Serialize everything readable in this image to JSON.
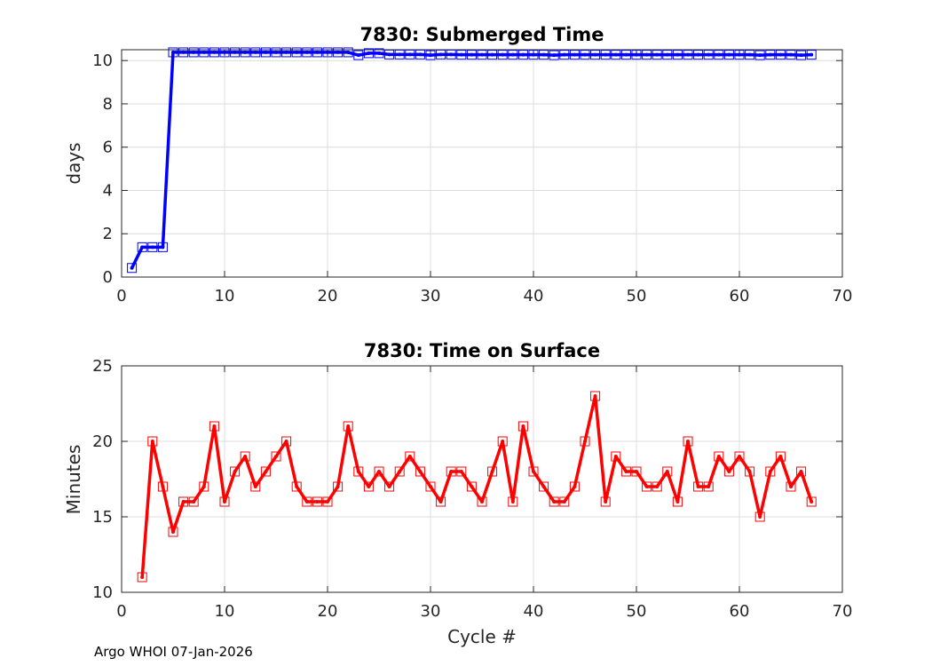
{
  "footer": "Argo WHOI 07-Jan-2026",
  "chart_data": [
    {
      "type": "line",
      "title": "7830: Submerged Time",
      "xlabel": "",
      "ylabel": "days",
      "xlim": [
        0,
        70
      ],
      "ylim": [
        0,
        10.5
      ],
      "xticks": [
        0,
        10,
        20,
        30,
        40,
        50,
        60,
        70
      ],
      "yticks": [
        0,
        2,
        4,
        6,
        8,
        10
      ],
      "grid": true,
      "color": "#0000ff",
      "marker": "square",
      "x": [
        1,
        2,
        3,
        4,
        5,
        6,
        7,
        8,
        9,
        10,
        11,
        12,
        13,
        14,
        15,
        16,
        17,
        18,
        19,
        20,
        21,
        22,
        23,
        24,
        25,
        26,
        27,
        28,
        29,
        30,
        31,
        32,
        33,
        34,
        35,
        36,
        37,
        38,
        39,
        40,
        41,
        42,
        43,
        44,
        45,
        46,
        47,
        48,
        49,
        50,
        51,
        52,
        53,
        54,
        55,
        56,
        57,
        58,
        59,
        60,
        61,
        62,
        63,
        64,
        65,
        66,
        67
      ],
      "values": [
        0.42,
        1.38,
        1.38,
        1.38,
        10.38,
        10.38,
        10.38,
        10.38,
        10.38,
        10.38,
        10.38,
        10.38,
        10.38,
        10.38,
        10.38,
        10.38,
        10.38,
        10.38,
        10.38,
        10.38,
        10.38,
        10.38,
        10.25,
        10.34,
        10.34,
        10.28,
        10.28,
        10.28,
        10.28,
        10.25,
        10.28,
        10.28,
        10.27,
        10.27,
        10.27,
        10.27,
        10.27,
        10.27,
        10.27,
        10.27,
        10.27,
        10.25,
        10.27,
        10.27,
        10.27,
        10.27,
        10.27,
        10.27,
        10.27,
        10.27,
        10.27,
        10.27,
        10.27,
        10.27,
        10.27,
        10.27,
        10.27,
        10.27,
        10.27,
        10.27,
        10.27,
        10.25,
        10.27,
        10.27,
        10.27,
        10.25,
        10.27
      ]
    },
    {
      "type": "line",
      "title": "7830: Time on Surface",
      "xlabel": "Cycle #",
      "ylabel": "Minutes",
      "xlim": [
        0,
        70
      ],
      "ylim": [
        10,
        25
      ],
      "xticks": [
        0,
        10,
        20,
        30,
        40,
        50,
        60,
        70
      ],
      "yticks": [
        10,
        15,
        20,
        25
      ],
      "grid": true,
      "color": "#ff0000",
      "marker": "square",
      "x": [
        2,
        3,
        4,
        5,
        6,
        7,
        8,
        9,
        10,
        11,
        12,
        13,
        14,
        15,
        16,
        17,
        18,
        19,
        20,
        21,
        22,
        23,
        24,
        25,
        26,
        27,
        28,
        29,
        30,
        31,
        32,
        33,
        34,
        35,
        36,
        37,
        38,
        39,
        40,
        41,
        42,
        43,
        44,
        45,
        46,
        47,
        48,
        49,
        50,
        51,
        52,
        53,
        54,
        55,
        56,
        57,
        58,
        59,
        60,
        61,
        62,
        63,
        64,
        65,
        66,
        67
      ],
      "values": [
        11,
        20,
        17,
        14,
        16,
        16,
        17,
        21,
        16,
        18,
        19,
        17,
        18,
        19,
        20,
        17,
        16,
        16,
        16,
        17,
        21,
        18,
        17,
        18,
        17,
        18,
        19,
        18,
        17,
        16,
        18,
        18,
        17,
        16,
        18,
        20,
        16,
        21,
        18,
        17,
        16,
        16,
        17,
        20,
        23,
        16,
        19,
        18,
        18,
        17,
        17,
        18,
        16,
        20,
        17,
        17,
        19,
        18,
        19,
        18,
        15,
        18,
        19,
        17,
        18,
        16
      ]
    }
  ]
}
